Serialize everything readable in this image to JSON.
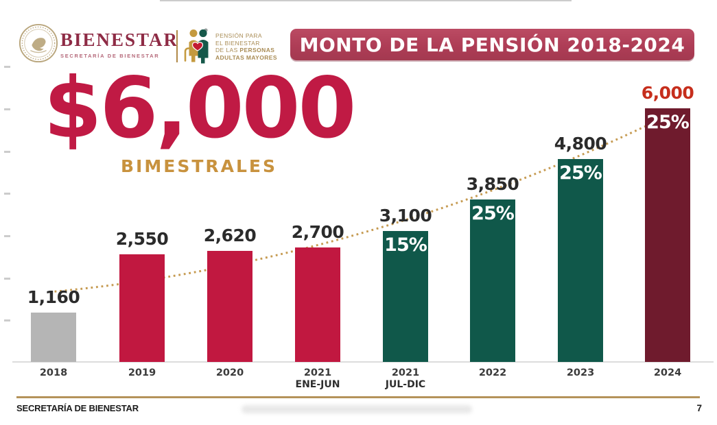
{
  "header": {
    "brand": {
      "name": "BIENESTAR",
      "subtitle": "SECRETARÍA DE BIENESTAR"
    },
    "program": {
      "line1": "PENSIÓN PARA",
      "line2": "EL BIENESTAR",
      "line3_prefix": "DE LAS ",
      "line3_bold": "PERSONAS",
      "line4_bold": "ADULTAS MAYORES"
    },
    "banner_title": "MONTO DE LA PENSIÓN 2018-2024"
  },
  "highlight": {
    "amount": "$6,000",
    "caption": "BIMESTRALES"
  },
  "chart_data": {
    "type": "bar",
    "title": "MONTO DE LA PENSIÓN 2018-2024",
    "categories": [
      {
        "year": "2018",
        "period": ""
      },
      {
        "year": "2019",
        "period": ""
      },
      {
        "year": "2020",
        "period": ""
      },
      {
        "year": "2021",
        "period": "ENE-JUN"
      },
      {
        "year": "2021",
        "period": "JUL-DIC"
      },
      {
        "year": "2022",
        "period": ""
      },
      {
        "year": "2023",
        "period": ""
      },
      {
        "year": "2024",
        "period": ""
      }
    ],
    "values": [
      1160,
      2550,
      2620,
      2700,
      3100,
      3850,
      4800,
      6000
    ],
    "value_labels": [
      "1,160",
      "2,550",
      "2,620",
      "2,700",
      "3,100",
      "3,850",
      "4,800",
      "6,000"
    ],
    "increase_labels": [
      "",
      "",
      "",
      "",
      "15%",
      "25%",
      "25%",
      "25%"
    ],
    "bar_colors": [
      "#b5b5b5",
      "#c11840",
      "#c11840",
      "#c11840",
      "#10584a",
      "#10584a",
      "#10584a",
      "#6f1b2d"
    ],
    "value_label_colors": [
      "#2b2b2b",
      "#2b2b2b",
      "#2b2b2b",
      "#2b2b2b",
      "#2b2b2b",
      "#2b2b2b",
      "#2b2b2b",
      "#c62e1c"
    ],
    "xlabel": "",
    "ylabel": "",
    "ylim": [
      0,
      7000
    ],
    "axis_tick_step": 1000,
    "gridlines": false,
    "legend": false,
    "trendline": {
      "style": "dotted",
      "color": "#c69b52",
      "description": "growth curve behind bars from 2018 label to 2024 bar top"
    }
  },
  "footer": {
    "left_text": "SECRETARÍA DE BIENESTAR",
    "page_number": "7"
  }
}
